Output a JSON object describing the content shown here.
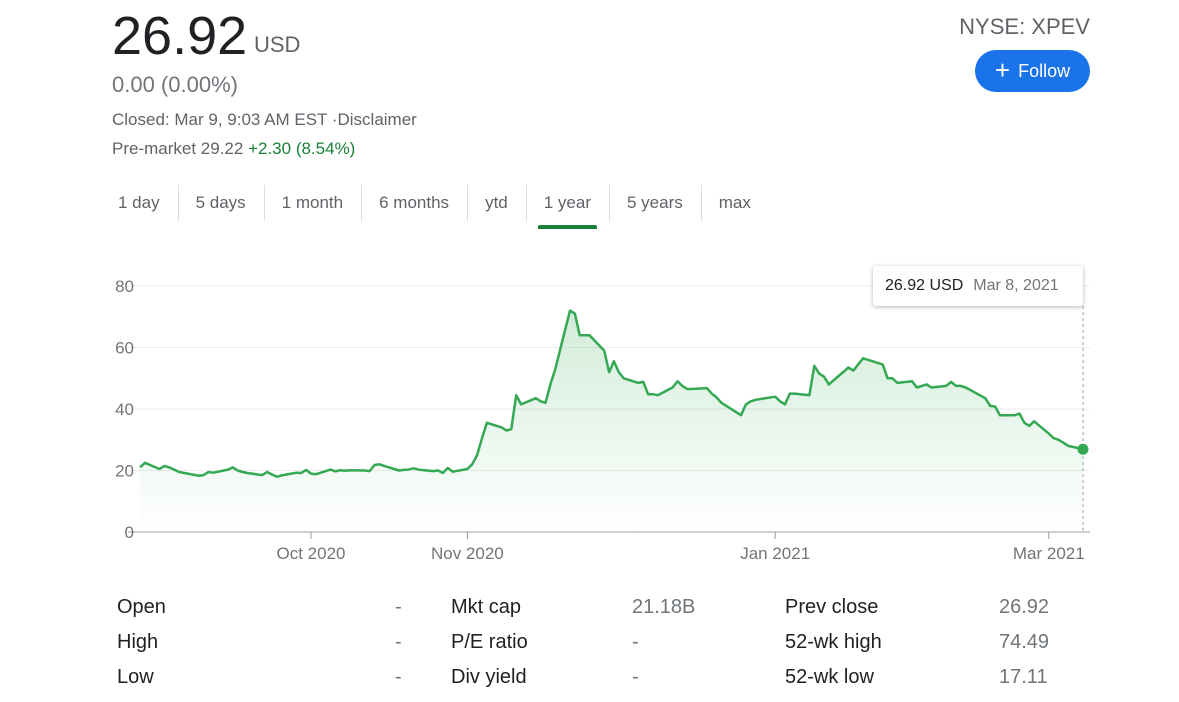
{
  "quote": {
    "price": "26.92",
    "currency": "USD",
    "change": "0.00 (0.00%)",
    "closed": "Closed: Mar 9, 9:03 AM EST ·Disclaimer",
    "premarket_label": "Pre-market 29.22",
    "premarket_change": "+2.30 (8.54%)",
    "ticker": "NYSE: XPEV",
    "follow_label": "Follow"
  },
  "tabs": [
    {
      "label": "1 day"
    },
    {
      "label": "5 days"
    },
    {
      "label": "1 month"
    },
    {
      "label": "6 months"
    },
    {
      "label": "ytd"
    },
    {
      "label": "1 year",
      "active": true
    },
    {
      "label": "5 years"
    },
    {
      "label": "max"
    }
  ],
  "tooltip": {
    "price": "26.92 USD",
    "date": "Mar 8, 2021"
  },
  "colors": {
    "line": "#34a853",
    "accent": "#1a73e8",
    "up": "#188038"
  },
  "chart_data": {
    "type": "area",
    "x_range": [
      "2020-08-27",
      "2021-03-08"
    ],
    "ylim": [
      0,
      80
    ],
    "yticks": [
      0,
      20,
      40,
      60,
      80
    ],
    "xticks": [
      {
        "label": "Oct 2020",
        "date": "2020-10-01"
      },
      {
        "label": "Nov 2020",
        "date": "2020-11-02"
      },
      {
        "label": "Jan 2021",
        "date": "2021-01-04"
      },
      {
        "label": "Mar 2021",
        "date": "2021-03-01"
      }
    ],
    "grid": true,
    "series": [
      {
        "points": [
          [
            "2020-08-27",
            21.0
          ],
          [
            "2020-08-28",
            22.5
          ],
          [
            "2020-08-31",
            20.5
          ],
          [
            "2020-09-01",
            21.5
          ],
          [
            "2020-09-02",
            21.0
          ],
          [
            "2020-09-03",
            20.3
          ],
          [
            "2020-09-04",
            19.5
          ],
          [
            "2020-09-08",
            18.3
          ],
          [
            "2020-09-09",
            18.5
          ],
          [
            "2020-09-10",
            19.5
          ],
          [
            "2020-09-11",
            19.3
          ],
          [
            "2020-09-14",
            20.3
          ],
          [
            "2020-09-15",
            21.0
          ],
          [
            "2020-09-16",
            20.0
          ],
          [
            "2020-09-17",
            19.5
          ],
          [
            "2020-09-18",
            19.2
          ],
          [
            "2020-09-21",
            18.5
          ],
          [
            "2020-09-22",
            19.5
          ],
          [
            "2020-09-23",
            18.7
          ],
          [
            "2020-09-24",
            18.0
          ],
          [
            "2020-09-25",
            18.4
          ],
          [
            "2020-09-28",
            19.3
          ],
          [
            "2020-09-29",
            19.2
          ],
          [
            "2020-09-30",
            20.2
          ],
          [
            "2020-10-01",
            19.0
          ],
          [
            "2020-10-02",
            18.8
          ],
          [
            "2020-10-05",
            20.3
          ],
          [
            "2020-10-06",
            19.7
          ],
          [
            "2020-10-07",
            20.1
          ],
          [
            "2020-10-08",
            19.9
          ],
          [
            "2020-10-09",
            20.1
          ],
          [
            "2020-10-12",
            20.0
          ],
          [
            "2020-10-13",
            19.8
          ],
          [
            "2020-10-14",
            21.8
          ],
          [
            "2020-10-15",
            22.0
          ],
          [
            "2020-10-16",
            21.5
          ],
          [
            "2020-10-19",
            20.0
          ],
          [
            "2020-10-20",
            20.2
          ],
          [
            "2020-10-21",
            20.3
          ],
          [
            "2020-10-22",
            20.7
          ],
          [
            "2020-10-23",
            20.3
          ],
          [
            "2020-10-26",
            19.8
          ],
          [
            "2020-10-27",
            20.0
          ],
          [
            "2020-10-28",
            19.2
          ],
          [
            "2020-10-29",
            20.8
          ],
          [
            "2020-10-30",
            19.6
          ],
          [
            "2020-11-02",
            20.5
          ],
          [
            "2020-11-03",
            22.0
          ],
          [
            "2020-11-04",
            25.0
          ],
          [
            "2020-11-05",
            30.5
          ],
          [
            "2020-11-06",
            35.5
          ],
          [
            "2020-11-09",
            34.0
          ],
          [
            "2020-11-10",
            33.0
          ],
          [
            "2020-11-11",
            33.5
          ],
          [
            "2020-11-12",
            44.5
          ],
          [
            "2020-11-13",
            41.5
          ],
          [
            "2020-11-16",
            43.5
          ],
          [
            "2020-11-17",
            42.5
          ],
          [
            "2020-11-18",
            42.0
          ],
          [
            "2020-11-19",
            48.0
          ],
          [
            "2020-11-20",
            53.0
          ],
          [
            "2020-11-23",
            72.0
          ],
          [
            "2020-11-24",
            71.0
          ],
          [
            "2020-11-25",
            64.0
          ],
          [
            "2020-11-27",
            64.0
          ],
          [
            "2020-11-30",
            59.0
          ],
          [
            "2020-12-01",
            52.0
          ],
          [
            "2020-12-02",
            55.5
          ],
          [
            "2020-12-03",
            52.0
          ],
          [
            "2020-12-04",
            50.0
          ],
          [
            "2020-12-07",
            48.5
          ],
          [
            "2020-12-08",
            48.8
          ],
          [
            "2020-12-09",
            44.8
          ],
          [
            "2020-12-10",
            44.8
          ],
          [
            "2020-12-11",
            44.5
          ],
          [
            "2020-12-14",
            47.0
          ],
          [
            "2020-12-15",
            49.0
          ],
          [
            "2020-12-16",
            47.5
          ],
          [
            "2020-12-17",
            46.5
          ],
          [
            "2020-12-18",
            46.5
          ],
          [
            "2020-12-21",
            46.8
          ],
          [
            "2020-12-22",
            45.0
          ],
          [
            "2020-12-23",
            43.8
          ],
          [
            "2020-12-24",
            42.0
          ],
          [
            "2020-12-28",
            38.0
          ],
          [
            "2020-12-29",
            41.5
          ],
          [
            "2020-12-30",
            42.5
          ],
          [
            "2020-12-31",
            43.0
          ],
          [
            "2021-01-04",
            44.0
          ],
          [
            "2021-01-05",
            42.5
          ],
          [
            "2021-01-06",
            41.5
          ],
          [
            "2021-01-07",
            45.0
          ],
          [
            "2021-01-08",
            45.0
          ],
          [
            "2021-01-11",
            44.5
          ],
          [
            "2021-01-12",
            54.0
          ],
          [
            "2021-01-13",
            51.5
          ],
          [
            "2021-01-14",
            50.5
          ],
          [
            "2021-01-15",
            48.0
          ],
          [
            "2021-01-19",
            53.5
          ],
          [
            "2021-01-20",
            52.5
          ],
          [
            "2021-01-21",
            54.5
          ],
          [
            "2021-01-22",
            56.5
          ],
          [
            "2021-01-25",
            55.0
          ],
          [
            "2021-01-26",
            54.5
          ],
          [
            "2021-01-27",
            50.0
          ],
          [
            "2021-01-28",
            50.0
          ],
          [
            "2021-01-29",
            48.5
          ],
          [
            "2021-02-01",
            49.0
          ],
          [
            "2021-02-02",
            47.0
          ],
          [
            "2021-02-03",
            47.5
          ],
          [
            "2021-02-04",
            48.0
          ],
          [
            "2021-02-05",
            47.0
          ],
          [
            "2021-02-08",
            47.5
          ],
          [
            "2021-02-09",
            48.8
          ],
          [
            "2021-02-10",
            47.5
          ],
          [
            "2021-02-11",
            47.5
          ],
          [
            "2021-02-12",
            47.0
          ],
          [
            "2021-02-16",
            43.5
          ],
          [
            "2021-02-17",
            41.0
          ],
          [
            "2021-02-18",
            40.8
          ],
          [
            "2021-02-19",
            38.0
          ],
          [
            "2021-02-22",
            38.0
          ],
          [
            "2021-02-23",
            38.5
          ],
          [
            "2021-02-24",
            35.5
          ],
          [
            "2021-02-25",
            34.5
          ],
          [
            "2021-02-26",
            36.0
          ],
          [
            "2021-03-01",
            32.0
          ],
          [
            "2021-03-02",
            30.5
          ],
          [
            "2021-03-03",
            30.0
          ],
          [
            "2021-03-04",
            29.0
          ],
          [
            "2021-03-05",
            28.0
          ],
          [
            "2021-03-08",
            26.92
          ]
        ]
      }
    ]
  },
  "stats": {
    "col1": [
      {
        "label": "Open",
        "value": "-"
      },
      {
        "label": "High",
        "value": "-"
      },
      {
        "label": "Low",
        "value": "-"
      }
    ],
    "col2": [
      {
        "label": "Mkt cap",
        "value": "21.18B"
      },
      {
        "label": "P/E ratio",
        "value": "-"
      },
      {
        "label": "Div yield",
        "value": "-"
      }
    ],
    "col3": [
      {
        "label": "Prev close",
        "value": "26.92"
      },
      {
        "label": "52-wk high",
        "value": "74.49"
      },
      {
        "label": "52-wk low",
        "value": "17.11"
      }
    ]
  }
}
